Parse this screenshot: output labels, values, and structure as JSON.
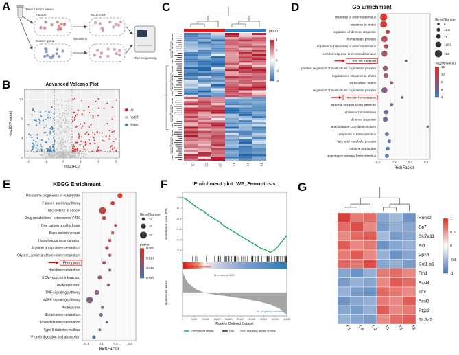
{
  "panel_labels": {
    "a": "A",
    "b": "B",
    "c": "C",
    "d": "D",
    "e": "E",
    "f": "F",
    "g": "G"
  },
  "panelA": {
    "serum_label": "Tibial fracture serum",
    "group1_label": "T group",
    "group2_label": "Control group",
    "cell_label": "MC3T3-E1",
    "stimulation_label": "stimulation",
    "sequencing_label": "RNA sequencing"
  },
  "chart_data": [
    {
      "id": "volcano",
      "type": "scatter",
      "title": "Advanced Volcano Plot",
      "xlabel": "log2(FC)",
      "ylabel": "-log10(P value)",
      "xlim": [
        -2.2,
        3.2
      ],
      "ylim": [
        0,
        14
      ],
      "xticks": [
        -2,
        -1,
        0,
        1,
        2,
        3
      ],
      "yticks": [
        0,
        4,
        8,
        12
      ],
      "fc_threshold": 0.5,
      "pvalue_threshold_line": 1.3,
      "series": [
        {
          "name": "up",
          "color": "#e41a1c",
          "n": 110
        },
        {
          "name": "nodiff",
          "color": "#bdbdbd",
          "n": 550
        },
        {
          "name": "down",
          "color": "#377eb8",
          "n": 95
        }
      ]
    },
    {
      "id": "heatmap_main",
      "type": "heatmap",
      "group_label": "group",
      "group_colors": [
        "#e41a1c",
        "#377eb8"
      ],
      "columns": [
        "C1",
        "C2",
        "C3",
        "T1",
        "T2",
        "T3"
      ],
      "n_rows": 60,
      "colorbar_ticks": [
        "4",
        "2",
        "0",
        "-2",
        "-4"
      ],
      "color_high": "#b2182b",
      "color_low": "#2166ac"
    },
    {
      "id": "go",
      "type": "dotplot",
      "title": "Go Enrichment",
      "xlabel": "RichFactor",
      "xticks": [
        "0.0",
        "0.2",
        "0.4",
        "0.6"
      ],
      "size_legend": {
        "title": "GeneNumber",
        "values": [
          8,
          42.5,
          79,
          115.5,
          152
        ]
      },
      "color_legend": {
        "title": "-log10(Pvalue)",
        "ticks": [
          "12",
          "10",
          "8",
          "6",
          "4"
        ],
        "high": "#d73027",
        "low": "#4575b4"
      },
      "terms": [
        {
          "term": "response to external stimulus",
          "rich_factor": 0.07,
          "gene_number": 152,
          "neg_log10_pvalue": 12
        },
        {
          "term": "response to stress",
          "rich_factor": 0.07,
          "gene_number": 140,
          "neg_log10_pvalue": 11.5
        },
        {
          "term": "regulation of defense response",
          "rich_factor": 0.12,
          "gene_number": 60,
          "neg_log10_pvalue": 10.5
        },
        {
          "term": "homeostatic process",
          "rich_factor": 0.08,
          "gene_number": 120,
          "neg_log10_pvalue": 10
        },
        {
          "term": "regulation of response to external stimulus",
          "rich_factor": 0.1,
          "gene_number": 70,
          "neg_log10_pvalue": 9.5
        },
        {
          "term": "cellular response to chemical stimulus",
          "rich_factor": 0.08,
          "gene_number": 110,
          "neg_log10_pvalue": 9
        },
        {
          "term": "iron ion transport",
          "rich_factor": 0.35,
          "gene_number": 12,
          "neg_log10_pvalue": 8.5,
          "highlight": true
        },
        {
          "term": "positive regulation of multicellular organismal process",
          "rich_factor": 0.09,
          "gene_number": 90,
          "neg_log10_pvalue": 8
        },
        {
          "term": "regulation of response to stress",
          "rich_factor": 0.1,
          "gene_number": 75,
          "neg_log10_pvalue": 8
        },
        {
          "term": "extracellular matrix",
          "rich_factor": 0.17,
          "gene_number": 35,
          "neg_log10_pvalue": 7.5
        },
        {
          "term": "regulation of multicellular organismal process",
          "rich_factor": 0.08,
          "gene_number": 115,
          "neg_log10_pvalue": 7
        },
        {
          "term": "iron ion homeostasis",
          "rich_factor": 0.3,
          "gene_number": 12,
          "neg_log10_pvalue": 7,
          "highlight": true
        },
        {
          "term": "external encapsulating structure",
          "rich_factor": 0.17,
          "gene_number": 35,
          "neg_log10_pvalue": 6.5
        },
        {
          "term": "chemical homeostasis",
          "rich_factor": 0.1,
          "gene_number": 70,
          "neg_log10_pvalue": 6
        },
        {
          "term": "defense response",
          "rich_factor": 0.09,
          "gene_number": 85,
          "neg_log10_pvalue": 6
        },
        {
          "term": "arachidonate-CoA ligase activity",
          "rich_factor": 0.62,
          "gene_number": 8,
          "neg_log10_pvalue": 5.5
        },
        {
          "term": "response to biotic stimulus",
          "rich_factor": 0.11,
          "gene_number": 55,
          "neg_log10_pvalue": 5
        },
        {
          "term": "fatty acid metabolic process",
          "rich_factor": 0.14,
          "gene_number": 40,
          "neg_log10_pvalue": 5
        },
        {
          "term": "cytokine production",
          "rich_factor": 0.12,
          "gene_number": 50,
          "neg_log10_pvalue": 4.5
        },
        {
          "term": "response to external biotic stimulus",
          "rich_factor": 0.11,
          "gene_number": 52,
          "neg_log10_pvalue": 4
        }
      ]
    },
    {
      "id": "kegg",
      "type": "dotplot",
      "title": "KEGG Enrichment",
      "xlabel": "RichFactor",
      "xticks": [
        "0.1",
        "0.2",
        "0.3",
        "0.4"
      ],
      "size_legend": {
        "title": "GeneNumber",
        "values": [
          10,
          20,
          30
        ]
      },
      "color_legend": {
        "title": "pvalue",
        "ticks": [
          "0.005",
          "0.010",
          "0.015",
          "0.020"
        ],
        "high": "#d73027",
        "low": "#4575b4"
      },
      "terms": [
        {
          "term": "Ribosome biogenesis in eukaryotes",
          "rich_factor": 0.33,
          "gene_number": 20,
          "pvalue": 0.001
        },
        {
          "term": "Fanconi anemia pathway",
          "rich_factor": 0.28,
          "gene_number": 15,
          "pvalue": 0.002
        },
        {
          "term": "MicroRNAs in cancer",
          "rich_factor": 0.21,
          "gene_number": 30,
          "pvalue": 0.003
        },
        {
          "term": "Drug metabolism - cytochrome P450",
          "rich_factor": 0.22,
          "gene_number": 14,
          "pvalue": 0.004
        },
        {
          "term": "One carbon pool by folate",
          "rich_factor": 0.3,
          "gene_number": 8,
          "pvalue": 0.004
        },
        {
          "term": "Base excision repair",
          "rich_factor": 0.28,
          "gene_number": 9,
          "pvalue": 0.005
        },
        {
          "term": "Homologous recombination",
          "rich_factor": 0.26,
          "gene_number": 10,
          "pvalue": 0.006
        },
        {
          "term": "Arginine and proline metabolism",
          "rich_factor": 0.24,
          "gene_number": 12,
          "pvalue": 0.007
        },
        {
          "term": "Glycine, serine and threonine metabolism",
          "rich_factor": 0.26,
          "gene_number": 10,
          "pvalue": 0.008
        },
        {
          "term": "Ferroptosis",
          "rich_factor": 0.22,
          "gene_number": 12,
          "pvalue": 0.008,
          "highlight": true
        },
        {
          "term": "Histidine metabolism",
          "rich_factor": 0.26,
          "gene_number": 8,
          "pvalue": 0.009
        },
        {
          "term": "ECM-receptor interaction",
          "rich_factor": 0.19,
          "gene_number": 15,
          "pvalue": 0.01
        },
        {
          "term": "DNA replication",
          "rich_factor": 0.25,
          "gene_number": 9,
          "pvalue": 0.01
        },
        {
          "term": "TNF signaling pathway",
          "rich_factor": 0.17,
          "gene_number": 18,
          "pvalue": 0.012
        },
        {
          "term": "MAPK signaling pathway",
          "rich_factor": 0.12,
          "gene_number": 28,
          "pvalue": 0.013
        },
        {
          "term": "Proteasome",
          "rich_factor": 0.21,
          "gene_number": 10,
          "pvalue": 0.014
        },
        {
          "term": "Glutathione metabolism",
          "rich_factor": 0.2,
          "gene_number": 11,
          "pvalue": 0.015
        },
        {
          "term": "Phenylalanine metabolism",
          "rich_factor": 0.24,
          "gene_number": 6,
          "pvalue": 0.017
        },
        {
          "term": "Type II diabetes mellitus",
          "rich_factor": 0.19,
          "gene_number": 7,
          "pvalue": 0.018
        },
        {
          "term": "Protein digestion and absorption",
          "rich_factor": 0.15,
          "gene_number": 12,
          "pvalue": 0.019
        }
      ]
    },
    {
      "id": "gsea",
      "type": "line",
      "title": "Enrichment plot: WP_Ferroptosis",
      "ylabel_top": "Enrichment score (ES)",
      "ylabel_bottom": "Ranked list metric",
      "xlabel": "Rank in Ordered Dataset",
      "xticks": [
        "0",
        "5,000",
        "10,000",
        "15,000",
        "20,000",
        "25,000",
        "30,000",
        "35,000",
        "40,000",
        "45,000"
      ],
      "es_yticks": [
        "0.0",
        "-0.1",
        "-0.2",
        "-0.3",
        "-0.4",
        "-0.5"
      ],
      "es_curve": [
        [
          0,
          0
        ],
        [
          0.04,
          -0.02
        ],
        [
          0.08,
          -0.05
        ],
        [
          0.12,
          -0.08
        ],
        [
          0.16,
          -0.11
        ],
        [
          0.2,
          -0.13
        ],
        [
          0.25,
          -0.17
        ],
        [
          0.3,
          -0.2
        ],
        [
          0.35,
          -0.23
        ],
        [
          0.4,
          -0.27
        ],
        [
          0.45,
          -0.3
        ],
        [
          0.5,
          -0.33
        ],
        [
          0.55,
          -0.36
        ],
        [
          0.6,
          -0.39
        ],
        [
          0.65,
          -0.42
        ],
        [
          0.7,
          -0.45
        ],
        [
          0.75,
          -0.48
        ],
        [
          0.8,
          -0.5
        ],
        [
          0.84,
          -0.52
        ],
        [
          0.88,
          -0.5
        ],
        [
          0.92,
          -0.46
        ],
        [
          0.96,
          -0.41
        ],
        [
          1,
          -0.36
        ]
      ],
      "ranked_metric": [
        [
          0,
          0.95
        ],
        [
          0.03,
          0.6
        ],
        [
          0.06,
          0.4
        ],
        [
          0.1,
          0.25
        ],
        [
          0.14,
          0.12
        ],
        [
          0.18,
          0.05
        ],
        [
          0.209,
          0
        ],
        [
          0.25,
          -0.05
        ],
        [
          0.35,
          -0.12
        ],
        [
          0.45,
          -0.18
        ],
        [
          0.55,
          -0.25
        ],
        [
          0.65,
          -0.33
        ],
        [
          0.75,
          -0.42
        ],
        [
          0.85,
          -0.55
        ],
        [
          0.93,
          -0.72
        ],
        [
          1,
          -1
        ]
      ],
      "hits_count": 70,
      "zero_cross_label": "Zero cross at 9402",
      "pos_label": "'h' (positively correlated)",
      "neg_label": "'c1' (negatively correlated)",
      "legend": [
        "Enrichment profile",
        "Hits",
        "Ranking metric scores"
      ],
      "curve_color": "#00a651"
    },
    {
      "id": "genes",
      "type": "heatmap",
      "rows": [
        "Runx2",
        "Sp7",
        "Slc7a11",
        "Alp",
        "Gpx4",
        "Col1-a1",
        "Fth1",
        "Acsl4",
        "Tfrc",
        "Acsl3",
        "Ptgs2",
        "Slc3a2"
      ],
      "columns": [
        "C1",
        "C3",
        "C2",
        "T1",
        "T3",
        "T2"
      ],
      "values": [
        [
          1.3,
          0.9,
          1.0,
          -0.9,
          -0.7,
          -1.1
        ],
        [
          1.0,
          1.2,
          0.8,
          -1.0,
          -0.8,
          -0.9
        ],
        [
          0.8,
          1.0,
          1.1,
          -0.7,
          -1.0,
          -0.9
        ],
        [
          1.1,
          0.8,
          0.9,
          -1.1,
          -0.9,
          -0.8
        ],
        [
          0.9,
          1.1,
          0.8,
          -0.8,
          -1.1,
          -0.9
        ],
        [
          1.0,
          0.9,
          1.2,
          -0.9,
          -0.8,
          -1.0
        ],
        [
          -0.9,
          -1.1,
          -0.8,
          0.9,
          1.0,
          0.8
        ],
        [
          -1.0,
          -0.8,
          -0.9,
          0.8,
          1.1,
          1.0
        ],
        [
          -0.8,
          -1.0,
          -1.1,
          1.0,
          0.9,
          0.8
        ],
        [
          -1.1,
          -0.9,
          -0.8,
          0.9,
          0.8,
          1.1
        ],
        [
          -0.9,
          -1.0,
          -0.8,
          1.1,
          0.8,
          0.9
        ],
        [
          -0.8,
          -0.9,
          -1.0,
          0.8,
          1.0,
          1.1
        ]
      ],
      "colorbar_ticks": [
        "1",
        "0.5",
        "0",
        "-0.5",
        "-1"
      ],
      "color_high": "#d73027",
      "color_low": "#4575b4"
    }
  ]
}
